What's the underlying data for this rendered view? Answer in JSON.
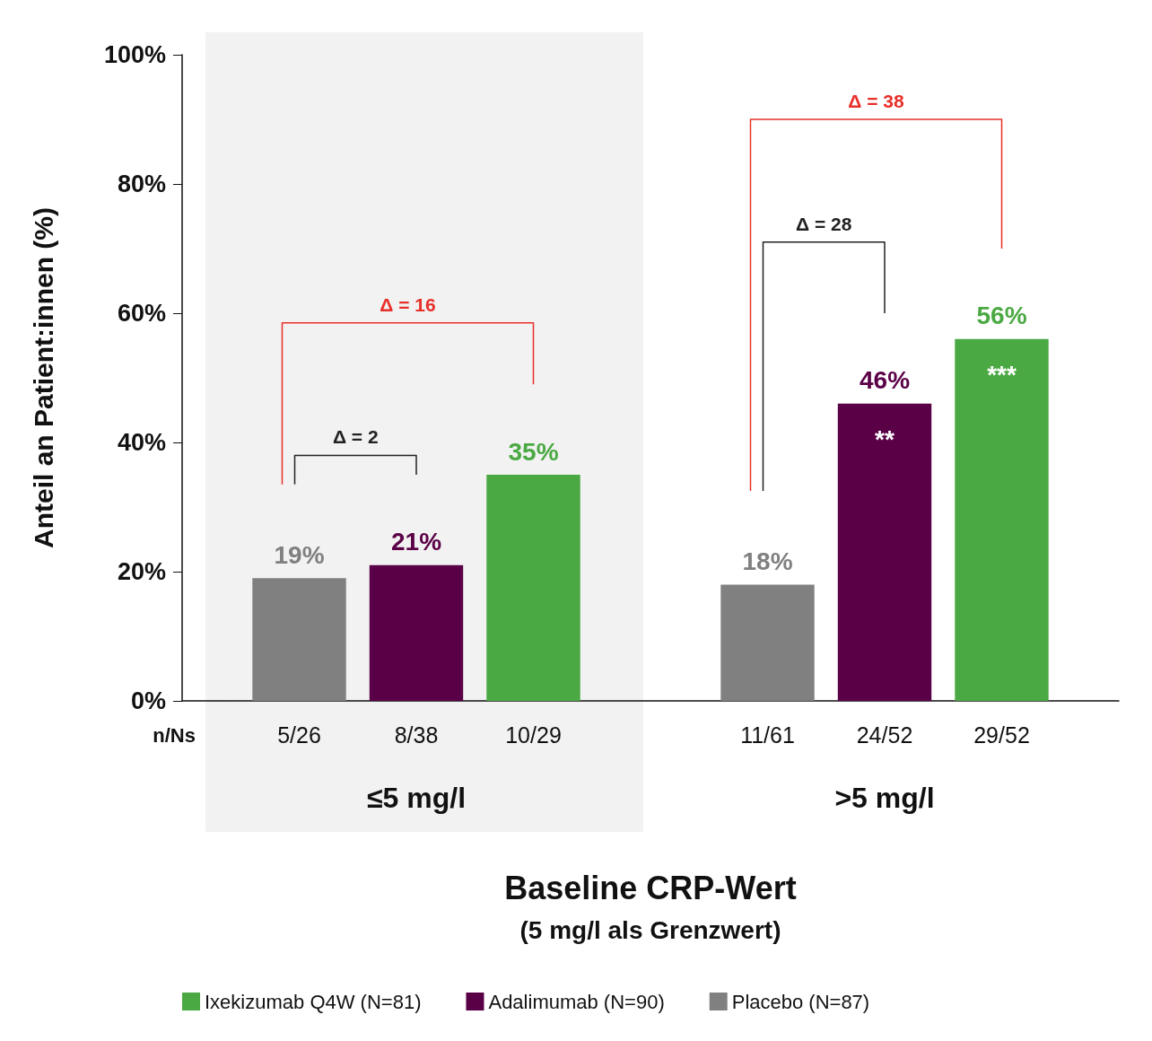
{
  "chart_data": {
    "type": "bar",
    "xlabel": "Baseline CRP-Wert",
    "ylabel": "Anteil an Patient:innen (%)",
    "categories": [
      "≤5 mg/l",
      ">5 mg/l"
    ],
    "series": [
      {
        "name": "Placebo (N=87)",
        "color": "#808080",
        "values": [
          19,
          18
        ],
        "value_labels": [
          "19%",
          "18%"
        ]
      },
      {
        "name": "Adalimumab (N=90)",
        "color": "#5a0047",
        "values": [
          21,
          46
        ],
        "value_labels": [
          "21%",
          "46%"
        ]
      },
      {
        "name": "Ixekizumab Q4W (N=81)",
        "color": "#4aa942",
        "values": [
          35,
          56
        ],
        "value_labels": [
          "35%",
          "56%"
        ]
      }
    ],
    "ylim": [
      0,
      100
    ],
    "yticks": [
      {
        "value": 0,
        "label": "0%"
      },
      {
        "value": 20,
        "label": "20%"
      },
      {
        "value": 40,
        "label": "40%"
      },
      {
        "value": 60,
        "label": "60%"
      },
      {
        "value": 80,
        "label": "80%"
      },
      {
        "value": 100,
        "label": "100%"
      }
    ],
    "bands": [
      {
        "axis": "x",
        "from": "≤5 mg/l",
        "to": "≤5 mg/l",
        "color": "#f2f2f2"
      }
    ],
    "annotations": [
      "Δ = 2",
      "Δ = 16",
      "Δ = 28",
      "Δ = 38",
      "**",
      "***",
      "5/26",
      "8/38",
      "10/29",
      "11/61",
      "24/52",
      "29/52",
      "n/Ns",
      "(5 mg/l als Grenzwert)"
    ],
    "legend": "bottom",
    "grid": false
  }
}
